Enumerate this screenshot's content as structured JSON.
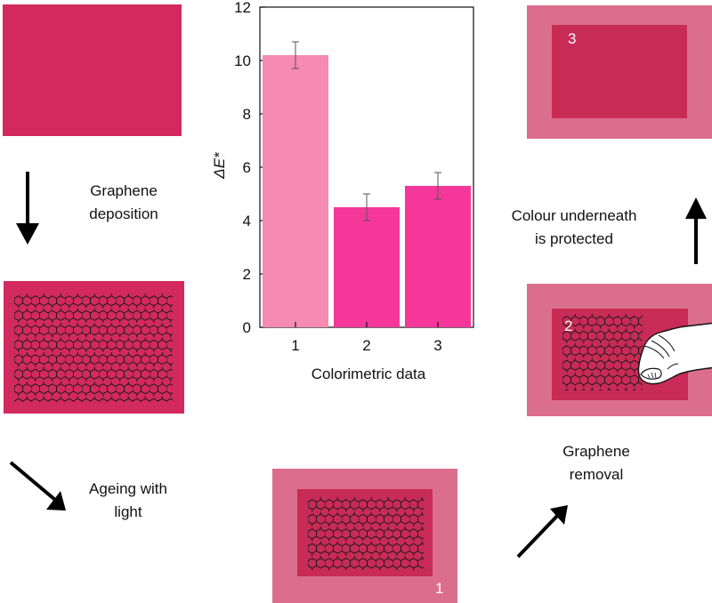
{
  "colors": {
    "paper": "#d2295f",
    "paper_light": "#dc6e8d",
    "paper_inner": "#c82b55",
    "bar_1": "#f58ab2",
    "bar_2_3": "#f5379a"
  },
  "steps": {
    "deposition": "Graphene\ndeposition",
    "ageing": "Ageing with\nlight",
    "removal": "Graphene\nremoval",
    "protected": "Colour underneath\nis protected"
  },
  "samples": {
    "s1": "1",
    "s2": "2",
    "s3": "3"
  },
  "icons": [
    "arrow-down-icon",
    "arrow-down-right-icon",
    "arrow-up-right-icon",
    "arrow-up-icon",
    "hand-icon",
    "graphene-lattice-icon"
  ],
  "chart_data": {
    "type": "bar",
    "categories": [
      "1",
      "2",
      "3"
    ],
    "values": [
      10.2,
      4.5,
      5.3
    ],
    "errors": [
      0.5,
      0.5,
      0.5
    ],
    "xlabel": "Colorimetric data",
    "ylabel": "ΔE*",
    "ylim": [
      0,
      12
    ],
    "yticks": [
      0,
      2,
      4,
      6,
      8,
      10,
      12
    ],
    "grid": false
  }
}
